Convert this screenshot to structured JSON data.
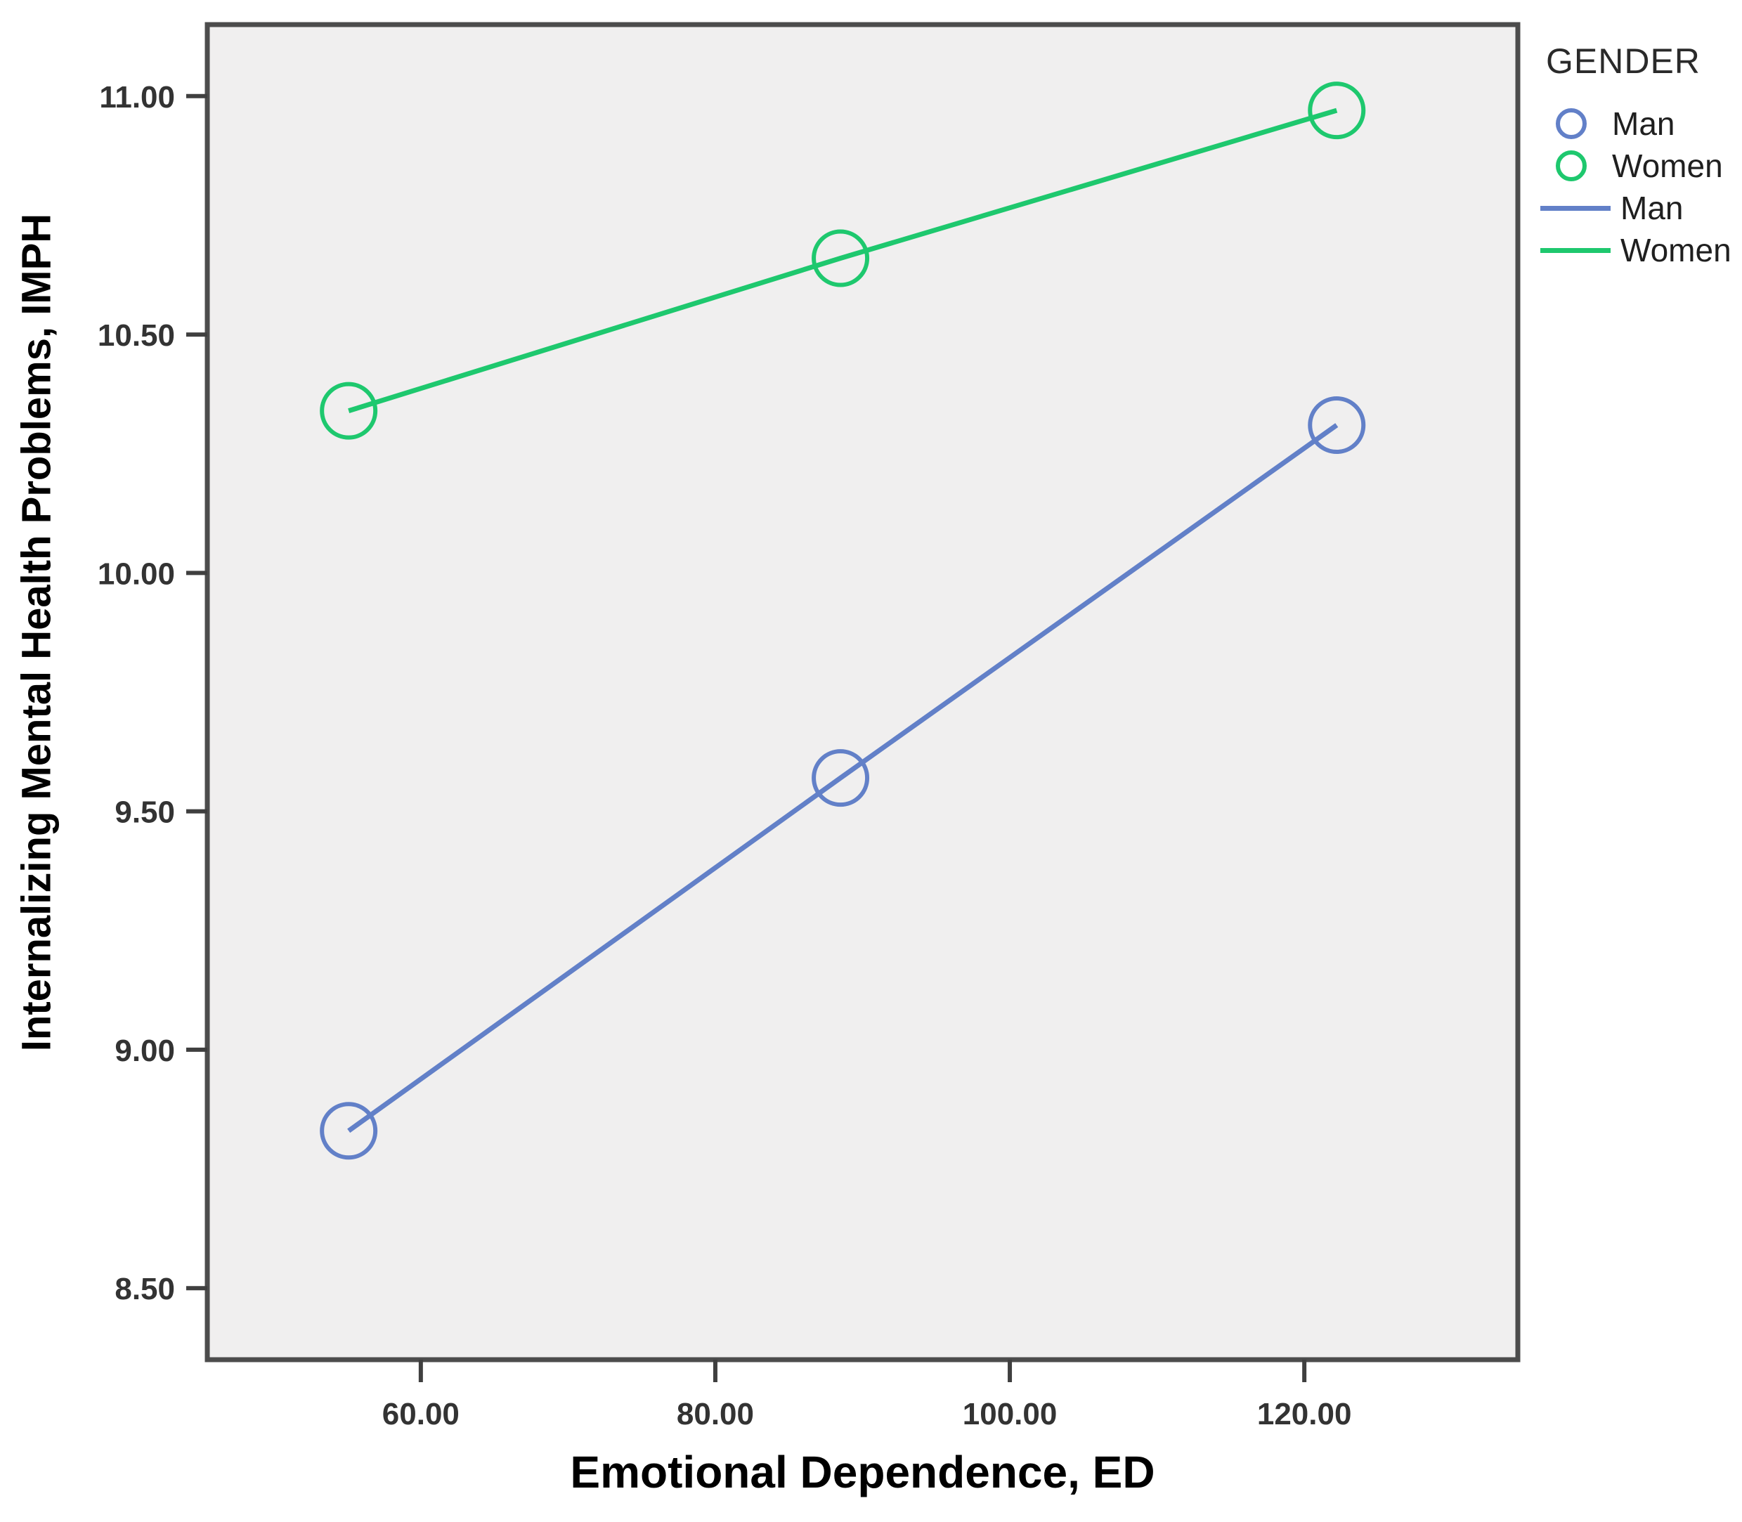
{
  "chart_data": {
    "type": "line",
    "title": "",
    "xlabel": "Emotional Dependence, ED",
    "ylabel": "Internalizing Mental Health Problems, IMPH",
    "x": [
      55.1,
      88.5,
      122.2
    ],
    "series": [
      {
        "name": "Man",
        "color": "#6280C8",
        "marker": "circle",
        "values": [
          8.83,
          9.57,
          10.31
        ]
      },
      {
        "name": "Women",
        "color": "#1EC86E",
        "marker": "circle",
        "values": [
          10.34,
          10.66,
          10.97
        ]
      }
    ],
    "xlim": [
      45.5,
      134.5
    ],
    "ylim": [
      8.35,
      11.15
    ],
    "xticks": {
      "values": [
        60,
        80,
        100,
        120
      ],
      "labels": [
        "60.00",
        "80.00",
        "100.00",
        "120.00"
      ]
    },
    "yticks": {
      "values": [
        8.5,
        9.0,
        9.5,
        10.0,
        10.5,
        11.0
      ],
      "labels": [
        "8.50",
        "9.00",
        "9.50",
        "10.00",
        "10.50",
        "11.00"
      ]
    },
    "grid": false,
    "plot_background": "#F0EFEF",
    "frame_color": "#4C4C4C",
    "tick_color": "#3F3F3F",
    "tick_label_color": "#333333",
    "legend": {
      "title": "GENDER",
      "position": "top-right-outside",
      "entries": [
        {
          "label": "Man",
          "swatch": "circle",
          "color": "#6280C8"
        },
        {
          "label": "Women",
          "swatch": "circle",
          "color": "#1EC86E"
        },
        {
          "label": "Man",
          "swatch": "line",
          "color": "#6280C8"
        },
        {
          "label": "Women",
          "swatch": "line",
          "color": "#1EC86E"
        }
      ]
    }
  }
}
